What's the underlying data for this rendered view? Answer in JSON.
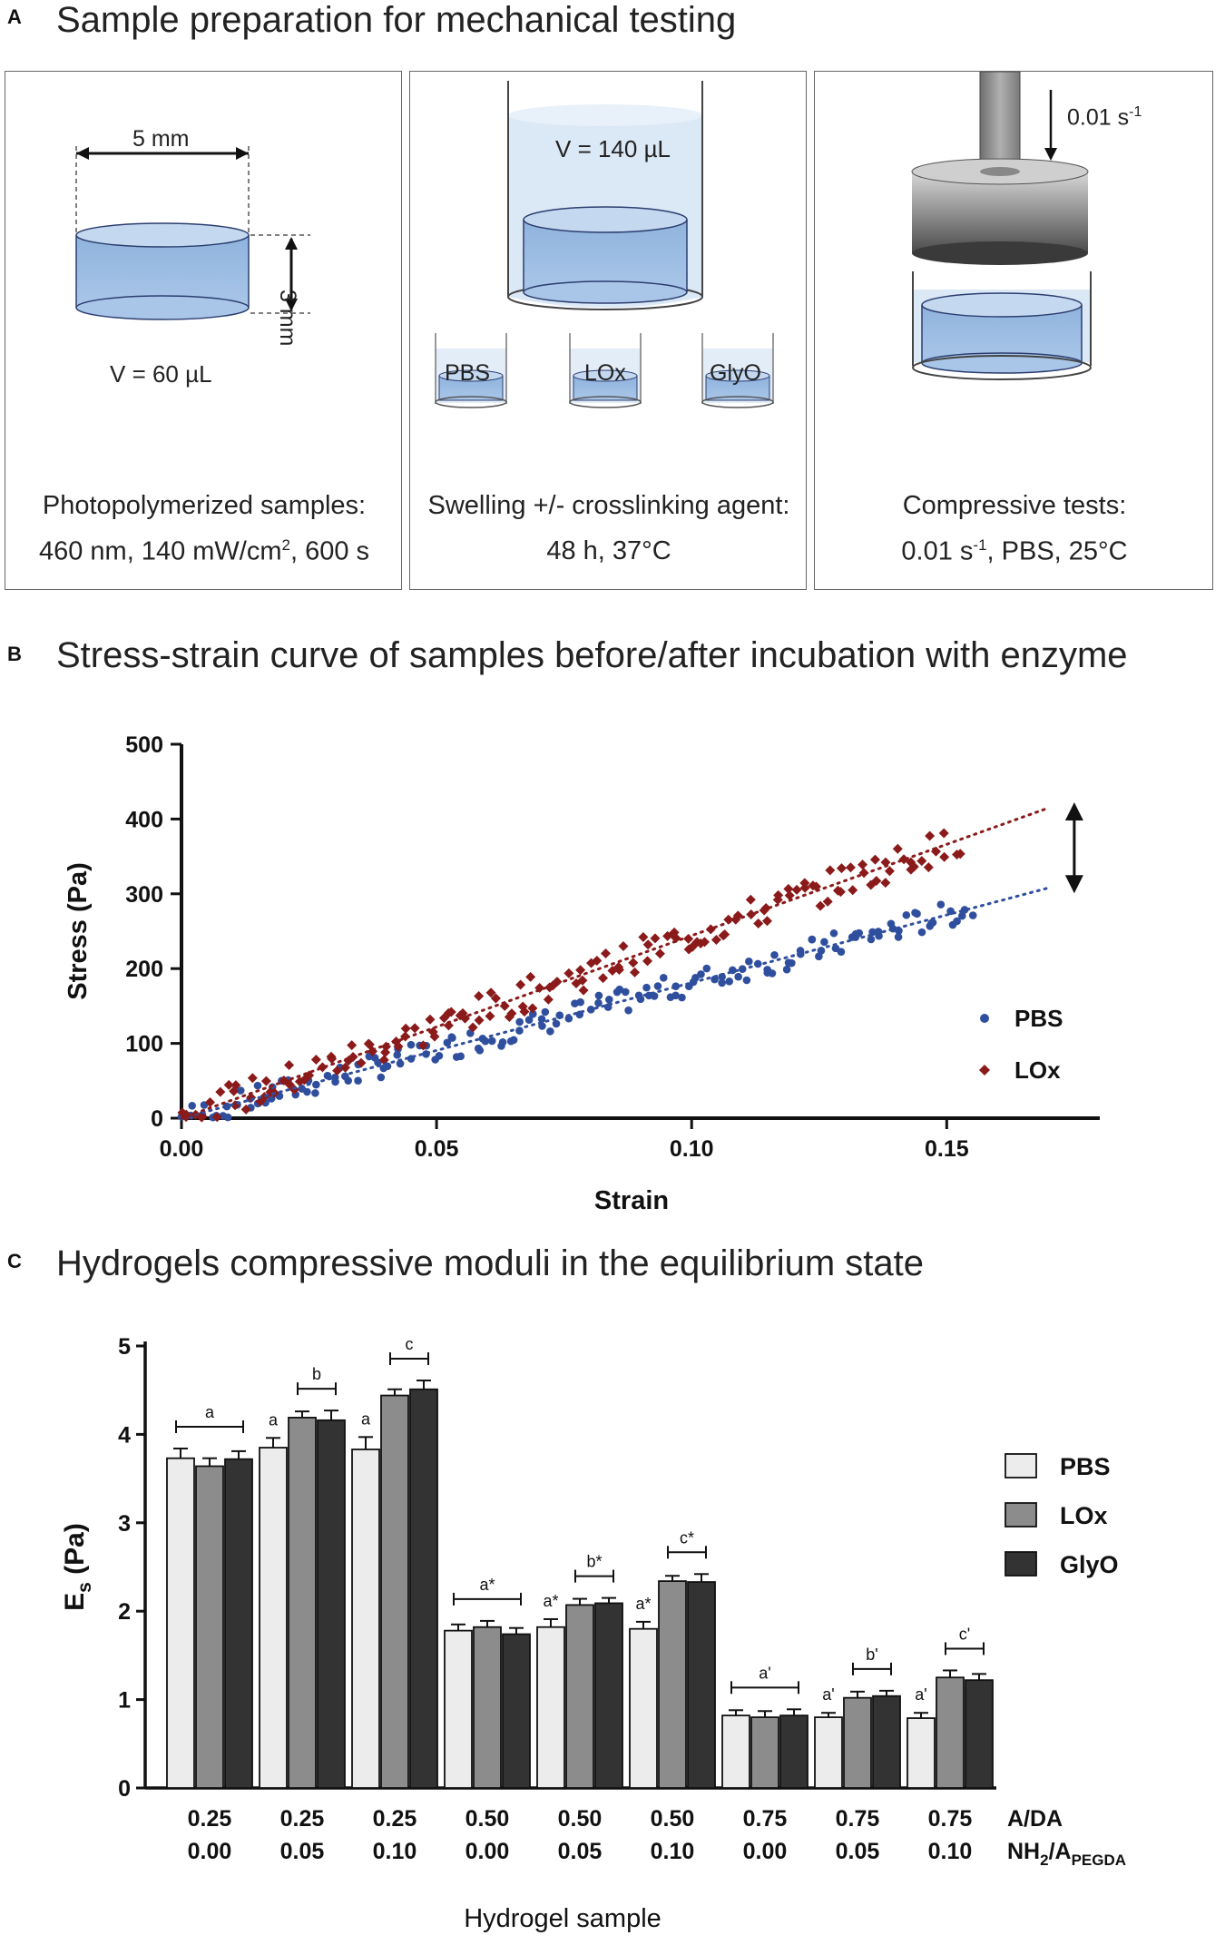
{
  "panelA": {
    "letter": "A",
    "title": "Sample preparation for mechanical testing",
    "box1": {
      "width_label": "5 mm",
      "height_label": "3 mm",
      "volume": "V = 60 µL",
      "caption1": "Photopolymerized samples:",
      "caption2a": "460 nm, 140 mW/cm",
      "caption2sup": "2",
      "caption2b": ", 600 s"
    },
    "box2": {
      "volume": "V = 140 µL",
      "vial1": "PBS",
      "vial2": "LOx",
      "vial3": "GlyO",
      "caption1": "Swelling +/- crosslinking agent:",
      "caption2": "48 h, 37°C"
    },
    "box3": {
      "rate_a": "0.01 s",
      "rate_sup": "-1",
      "caption1": "Compressive tests:",
      "caption2a": "0.01 s",
      "caption2sup": "-1",
      "caption2b": ", PBS, 25°C"
    }
  },
  "panelB": {
    "letter": "B",
    "title": "Stress-strain curve of samples before/after incubation with enzyme"
  },
  "panelC": {
    "letter": "C",
    "title": "Hydrogels compressive moduli in the equilibrium state"
  },
  "colors": {
    "pbs_scatter": "#2f4f9e",
    "lox_scatter": "#8b1a1a",
    "bar_pbs": "#ececec",
    "bar_lox": "#8c8c8c",
    "bar_glyo": "#333333"
  },
  "chart_data": [
    {
      "type": "scatter",
      "title": "Stress-strain curve of samples before/after incubation with enzyme",
      "xlabel": "Strain",
      "ylabel": "Stress (Pa)",
      "xlim": [
        0,
        0.18
      ],
      "ylim": [
        0,
        500
      ],
      "xticks": [
        0.0,
        0.05,
        0.1,
        0.15
      ],
      "xtick_labels": [
        "0.00",
        "0.05",
        "0.10",
        "0.15"
      ],
      "yticks": [
        0,
        100,
        200,
        300,
        400,
        500
      ],
      "ytick_labels": [
        "0",
        "100",
        "200",
        "300",
        "400",
        "500"
      ],
      "legend_position": "right",
      "series": [
        {
          "name": "PBS",
          "marker": "circle",
          "slope": 1810,
          "trend_x": [
            0,
            0.17
          ],
          "trend_y": [
            0,
            308
          ],
          "noise": 17,
          "n_points": 160,
          "x_range": [
            0,
            0.155
          ]
        },
        {
          "name": "LOx",
          "marker": "diamond",
          "slope": 2440,
          "trend_x": [
            0,
            0.17
          ],
          "trend_y": [
            0,
            415
          ],
          "noise": 22,
          "n_points": 160,
          "x_range": [
            0,
            0.152
          ]
        }
      ],
      "annotation": "double-headed arrow showing stress difference at strain 0.17"
    },
    {
      "type": "bar",
      "title": "Hydrogels compressive moduli in the equilibrium state",
      "xlabel": "Hydrogel sample",
      "ylabel": "E",
      "ylabel_sub": "s",
      "ylabel_unit": " (Pa)",
      "ylim": [
        0,
        5
      ],
      "yticks": [
        "0",
        "1",
        "2",
        "3",
        "4",
        "5"
      ],
      "row1_label": "A/DA",
      "row2_label_main": "NH",
      "row2_label_sub1": "2",
      "row2_label_mid": "/A",
      "row2_label_sub2": "PEGDA",
      "categories_row1": [
        "0.25",
        "0.25",
        "0.25",
        "0.50",
        "0.50",
        "0.50",
        "0.75",
        "0.75",
        "0.75"
      ],
      "categories_row2": [
        "0.00",
        "0.05",
        "0.10",
        "0.00",
        "0.05",
        "0.10",
        "0.00",
        "0.05",
        "0.10"
      ],
      "series": [
        {
          "name": "PBS",
          "values": [
            3.73,
            3.85,
            3.83,
            1.78,
            1.82,
            1.8,
            0.82,
            0.8,
            0.79
          ],
          "errors": [
            0.11,
            0.11,
            0.14,
            0.07,
            0.09,
            0.08,
            0.06,
            0.05,
            0.06
          ]
        },
        {
          "name": "LOx",
          "values": [
            3.64,
            4.19,
            4.44,
            1.82,
            2.07,
            2.34,
            0.8,
            1.02,
            1.25
          ],
          "errors": [
            0.09,
            0.07,
            0.07,
            0.07,
            0.07,
            0.06,
            0.07,
            0.07,
            0.08
          ]
        },
        {
          "name": "GlyO",
          "values": [
            3.72,
            4.16,
            4.51,
            1.74,
            2.09,
            2.33,
            0.82,
            1.04,
            1.22
          ],
          "errors": [
            0.09,
            0.11,
            0.1,
            0.07,
            0.06,
            0.09,
            0.07,
            0.06,
            0.07
          ]
        }
      ],
      "group_annotations": [
        "a",
        "b",
        "c",
        "a*",
        "b*",
        "c*",
        "a'",
        "b'",
        "c'"
      ],
      "single_annotations": [
        {
          "group": 1,
          "label": "a"
        },
        {
          "group": 2,
          "label": "a"
        },
        {
          "group": 4,
          "label": "a*"
        },
        {
          "group": 5,
          "label": "a*"
        },
        {
          "group": 7,
          "label": "a'"
        },
        {
          "group": 8,
          "label": "a'"
        }
      ]
    }
  ]
}
